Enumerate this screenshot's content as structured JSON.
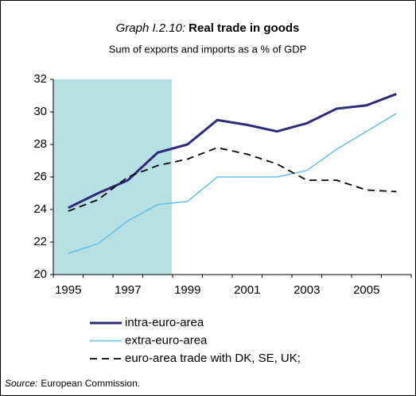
{
  "chart_data": {
    "type": "line",
    "title_prefix": "Graph I.2.10:",
    "title": "Real trade in goods",
    "subtitle": "Sum of exports and imports as a % of GDP",
    "categories": [
      "1995",
      null,
      "1997",
      null,
      "1999",
      null,
      "2001",
      null,
      "2003",
      null,
      "2005",
      null
    ],
    "series": [
      {
        "name": "intra-euro-area",
        "color": "#2e2a7a",
        "dash": "solid",
        "values": [
          24.1,
          25.0,
          25.8,
          27.5,
          28.0,
          29.5,
          29.2,
          28.8,
          29.3,
          30.2,
          30.4,
          31.1
        ]
      },
      {
        "name": "extra-euro-area",
        "color": "#62c0ec",
        "dash": "solid",
        "values": [
          21.3,
          21.9,
          23.3,
          24.3,
          24.5,
          26.0,
          26.0,
          26.0,
          26.4,
          27.7,
          28.8,
          29.9
        ]
      },
      {
        "name": "euro-area trade with DK, SE, UK;",
        "color": "#000000",
        "dash": "dashed",
        "values": [
          23.9,
          24.6,
          26.0,
          26.7,
          27.1,
          27.8,
          27.4,
          26.8,
          25.8,
          25.8,
          25.2,
          25.1
        ]
      }
    ],
    "ylim": [
      20,
      32
    ],
    "yticks": [
      20,
      22,
      24,
      26,
      28,
      30,
      32
    ],
    "source_label": "Source:",
    "source": "European Commission."
  }
}
